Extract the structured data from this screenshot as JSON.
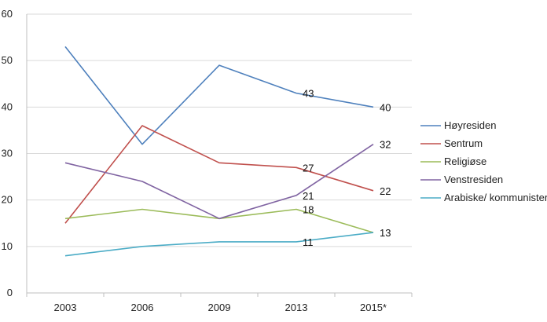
{
  "chart_data": {
    "type": "line",
    "categories": [
      "2003",
      "2006",
      "2009",
      "2013",
      "2015*"
    ],
    "ylim": [
      0,
      60
    ],
    "yticks": [
      0,
      10,
      20,
      30,
      40,
      50,
      60
    ],
    "grid": true,
    "legend_position": "right",
    "series": [
      {
        "name": "Høyresiden",
        "color": "#4f81bd",
        "values": [
          53,
          32,
          49,
          43,
          40
        ],
        "labels": [
          null,
          null,
          null,
          "43",
          "40"
        ]
      },
      {
        "name": "Sentrum",
        "color": "#c0504d",
        "values": [
          15,
          36,
          28,
          27,
          22
        ],
        "labels": [
          null,
          null,
          null,
          "27",
          "22"
        ]
      },
      {
        "name": "Religiøse",
        "color": "#9bbb59",
        "values": [
          16,
          18,
          16,
          18,
          13
        ],
        "labels": [
          null,
          null,
          null,
          "18",
          "13"
        ]
      },
      {
        "name": "Venstresiden",
        "color": "#8064a2",
        "values": [
          28,
          24,
          16,
          21,
          32
        ],
        "labels": [
          null,
          null,
          null,
          "21",
          "32"
        ]
      },
      {
        "name": "Arabiske/ kommunister",
        "color": "#4bacc6",
        "values": [
          8,
          10,
          11,
          11,
          13
        ],
        "labels": [
          null,
          null,
          null,
          "11",
          null
        ]
      }
    ]
  }
}
